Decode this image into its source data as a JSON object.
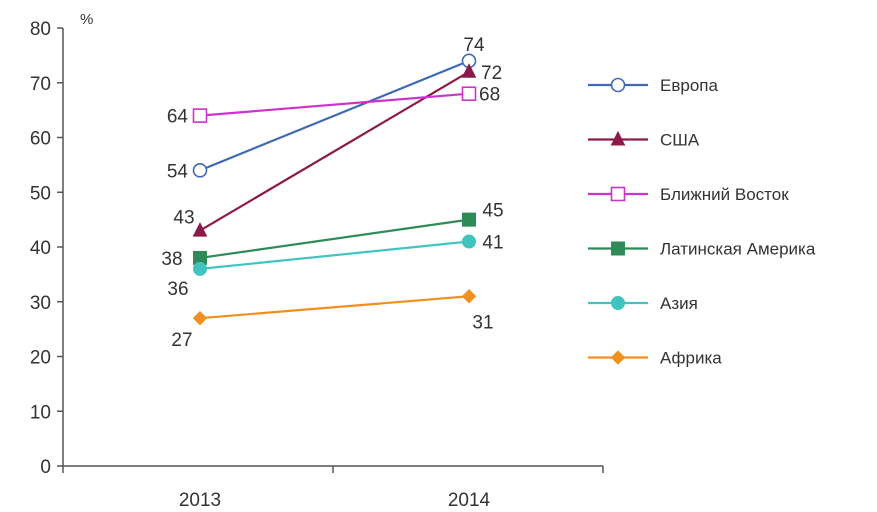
{
  "chart_data": {
    "type": "line",
    "title": "",
    "xlabel": "",
    "ylabel": "",
    "unit_label": "%",
    "categories": [
      "2013",
      "2014"
    ],
    "ylim": [
      0,
      80
    ],
    "yticks": [
      "0",
      "10",
      "20",
      "30",
      "40",
      "50",
      "60",
      "70",
      "80"
    ],
    "grid": false,
    "legend_position": "right",
    "series": [
      {
        "name": "Европа",
        "values": [
          54,
          74
        ],
        "labels": [
          "54",
          "74"
        ],
        "color": "#4169B3",
        "marker": "circle-open"
      },
      {
        "name": "США",
        "values": [
          43,
          72
        ],
        "labels": [
          "43",
          "72"
        ],
        "color": "#8B1A4A",
        "marker": "triangle"
      },
      {
        "name": "Ближний Восток",
        "values": [
          64,
          68
        ],
        "labels": [
          "64",
          "68"
        ],
        "color": "#CC33CC",
        "marker": "square-open"
      },
      {
        "name": "Латинская Америка",
        "values": [
          38,
          45
        ],
        "labels": [
          "38",
          "45"
        ],
        "color": "#2E8B57",
        "marker": "square"
      },
      {
        "name": "Азия",
        "values": [
          36,
          41
        ],
        "labels": [
          "36",
          "41"
        ],
        "color": "#40C4C0",
        "marker": "circle"
      },
      {
        "name": "Африка",
        "values": [
          27,
          31
        ],
        "labels": [
          "27",
          "31"
        ],
        "color": "#F0901E",
        "marker": "diamond"
      }
    ]
  }
}
